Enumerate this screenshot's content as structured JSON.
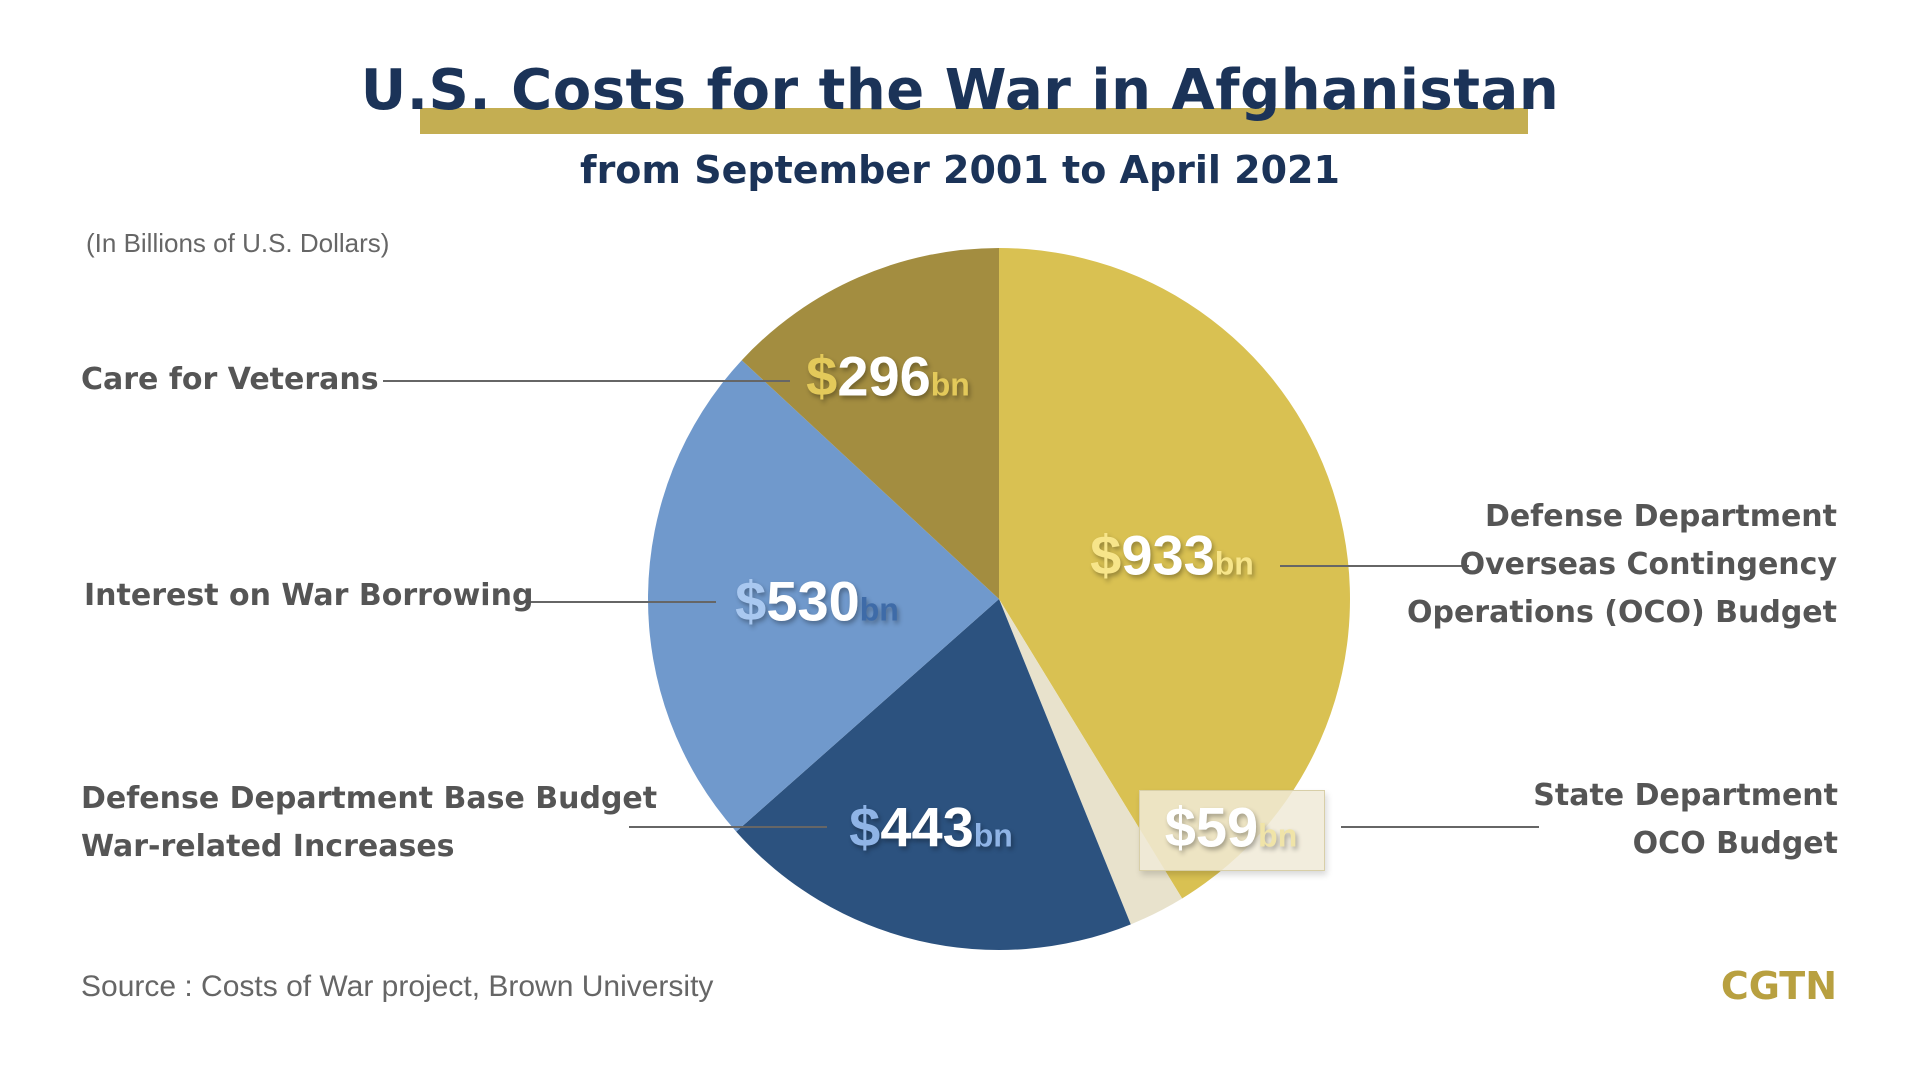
{
  "chart_data": {
    "type": "pie",
    "title": "U.S. Costs for the War in Afghanistan",
    "subtitle": "from September 2001 to April 2021",
    "unit_note": "(In Billions of U.S. Dollars)",
    "slices": [
      {
        "label": "Defense Department Overseas Contingency Operations (OCO) Budget",
        "label_lines": [
          "Defense Department",
          "Overseas Contingency",
          "Operations (OCO) Budget"
        ],
        "value": 933,
        "value_label": "933",
        "color": "#D9C152",
        "dollar_color": "#F7E58A",
        "bn_color": "#F7E58A"
      },
      {
        "label": "State Department OCO Budget",
        "label_lines": [
          "State Department",
          "OCO Budget"
        ],
        "value": 59,
        "value_label": "59",
        "color": "#E8E2CC",
        "dollar_color": "#FFFFFF",
        "bn_color": "#F0E4A8"
      },
      {
        "label": "Defense Department Base Budget War-related Increases",
        "label_lines": [
          "Defense Department Base Budget",
          "War-related Increases"
        ],
        "value": 443,
        "value_label": "443",
        "color": "#2C527F",
        "dollar_color": "#8FB4E6",
        "bn_color": "#8FB4E6"
      },
      {
        "label": "Interest on War Borrowing",
        "label_lines": [
          "Interest on War Borrowing"
        ],
        "value": 530,
        "value_label": "530",
        "color": "#7099CC",
        "dollar_color": "#A9C8F0",
        "bn_color": "#3E6BA8"
      },
      {
        "label": "Care for Veterans",
        "label_lines": [
          "Care for Veterans"
        ],
        "value": 296,
        "value_label": "296",
        "color": "#A38D40",
        "dollar_color": "#E3C95A",
        "bn_color": "#E3C95A"
      }
    ],
    "currency_symbol": "$",
    "suffix": "bn",
    "start_angle": "12 o'clock",
    "direction": "clockwise",
    "legend": "none"
  },
  "source": "Source : Costs of War project, Brown University",
  "logo": "CGTN"
}
